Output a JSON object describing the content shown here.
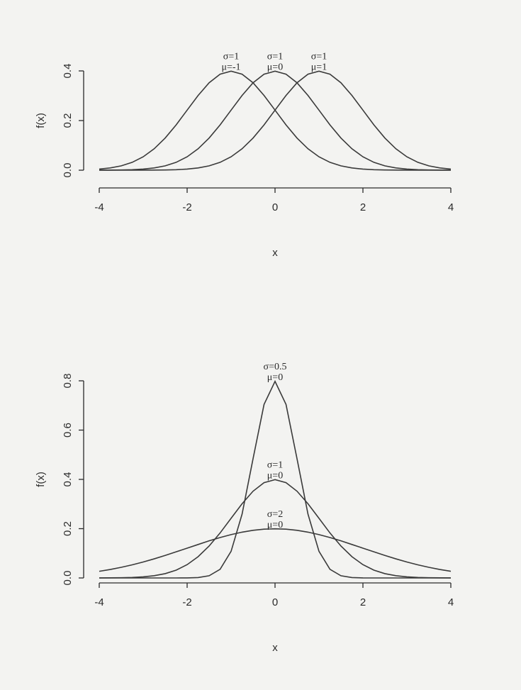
{
  "chart_data": [
    {
      "type": "line",
      "x_label": "x",
      "y_label": "f(x)",
      "x": [
        -4,
        -3.75,
        -3.5,
        -3.25,
        -3,
        -2.75,
        -2.5,
        -2.25,
        -2,
        -1.75,
        -1.5,
        -1.25,
        -1,
        -0.75,
        -0.5,
        -0.25,
        0,
        0.25,
        0.5,
        0.75,
        1,
        1.25,
        1.5,
        1.75,
        2,
        2.25,
        2.5,
        2.75,
        3,
        3.25,
        3.5,
        3.75,
        4
      ],
      "series": [
        {
          "annotation": [
            "σ=1",
            "μ=-1"
          ],
          "color": "#3a3a3a",
          "values": [
            0.0044,
            0.0091,
            0.0175,
            0.0317,
            0.054,
            0.0863,
            0.1295,
            0.1826,
            0.242,
            0.3011,
            0.3521,
            0.3867,
            0.3989,
            0.3867,
            0.3521,
            0.3011,
            0.242,
            0.1826,
            0.1295,
            0.0863,
            0.054,
            0.0317,
            0.0175,
            0.0091,
            0.0044,
            0.002,
            0.0009,
            0.0004,
            0.0001,
            0,
            0,
            0,
            0
          ]
        },
        {
          "annotation": [
            "σ=1",
            "μ=0"
          ],
          "color": "#3a3a3a",
          "values": [
            0.0001,
            0.0004,
            0.0009,
            0.002,
            0.0044,
            0.0091,
            0.0175,
            0.0317,
            0.054,
            0.0863,
            0.1295,
            0.1826,
            0.242,
            0.3011,
            0.3521,
            0.3867,
            0.3989,
            0.3867,
            0.3521,
            0.3011,
            0.242,
            0.1826,
            0.1295,
            0.0863,
            0.054,
            0.0317,
            0.0175,
            0.0091,
            0.0044,
            0.002,
            0.0009,
            0.0004,
            0.0001
          ]
        },
        {
          "annotation": [
            "σ=1",
            "μ=1"
          ],
          "color": "#3a3a3a",
          "values": [
            0,
            0,
            0,
            0,
            0.0001,
            0.0004,
            0.0009,
            0.002,
            0.0044,
            0.0091,
            0.0175,
            0.0317,
            0.054,
            0.0863,
            0.1295,
            0.1826,
            0.242,
            0.3011,
            0.3521,
            0.3867,
            0.3989,
            0.3867,
            0.3521,
            0.3011,
            0.242,
            0.1826,
            0.1295,
            0.0863,
            0.054,
            0.0317,
            0.0175,
            0.0091,
            0.0044
          ]
        }
      ],
      "xlim": [
        -4,
        4
      ],
      "xticks": [
        -4,
        -2,
        0,
        2,
        4
      ],
      "ylim": [
        0,
        0.4
      ],
      "yticks": [
        {
          "value": 0,
          "label": "0.0"
        },
        0.2,
        0.4
      ]
    },
    {
      "type": "line",
      "x_label": "x",
      "y_label": "f(x)",
      "x": [
        -4,
        -3.75,
        -3.5,
        -3.25,
        -3,
        -2.75,
        -2.5,
        -2.25,
        -2,
        -1.75,
        -1.5,
        -1.25,
        -1,
        -0.75,
        -0.5,
        -0.25,
        0,
        0.25,
        0.5,
        0.75,
        1,
        1.25,
        1.5,
        1.75,
        2,
        2.25,
        2.5,
        2.75,
        3,
        3.25,
        3.5,
        3.75,
        4
      ],
      "series": [
        {
          "annotation": [
            "σ=0.5",
            "μ=0"
          ],
          "color": "#3a3a3a",
          "values": [
            0,
            0,
            0,
            0,
            0,
            0,
            0,
            0,
            0.0003,
            0.0017,
            0.0089,
            0.035,
            0.108,
            0.259,
            0.4839,
            0.7042,
            0.7979,
            0.7042,
            0.4839,
            0.259,
            0.108,
            0.035,
            0.0089,
            0.0017,
            0.0003,
            0,
            0,
            0,
            0,
            0,
            0,
            0,
            0
          ]
        },
        {
          "annotation": [
            "σ=1",
            "μ=0"
          ],
          "color": "#3a3a3a",
          "values": [
            0.0001,
            0.0004,
            0.0009,
            0.002,
            0.0044,
            0.0091,
            0.0175,
            0.0317,
            0.054,
            0.0863,
            0.1295,
            0.1826,
            0.242,
            0.3011,
            0.3521,
            0.3867,
            0.3989,
            0.3867,
            0.3521,
            0.3011,
            0.242,
            0.1826,
            0.1295,
            0.0863,
            0.054,
            0.0317,
            0.0175,
            0.0091,
            0.0044,
            0.002,
            0.0009,
            0.0004,
            0.0001
          ]
        },
        {
          "annotation": [
            "σ=2",
            "μ=0"
          ],
          "color": "#3a3a3a",
          "values": [
            0.027,
            0.0344,
            0.0431,
            0.0533,
            0.0648,
            0.0775,
            0.0913,
            0.106,
            0.121,
            0.1358,
            0.1506,
            0.164,
            0.176,
            0.1859,
            0.1933,
            0.1979,
            0.1995,
            0.1979,
            0.1933,
            0.1859,
            0.176,
            0.164,
            0.1506,
            0.1358,
            0.121,
            0.106,
            0.0913,
            0.0775,
            0.0648,
            0.0533,
            0.0431,
            0.0344,
            0.027
          ]
        }
      ],
      "xlim": [
        -4,
        4
      ],
      "xticks": [
        -4,
        -2,
        0,
        2,
        4
      ],
      "ylim": [
        0,
        0.8
      ],
      "yticks": [
        {
          "value": 0,
          "label": "0.0"
        },
        0.2,
        0.4,
        0.6,
        0.8
      ]
    }
  ]
}
